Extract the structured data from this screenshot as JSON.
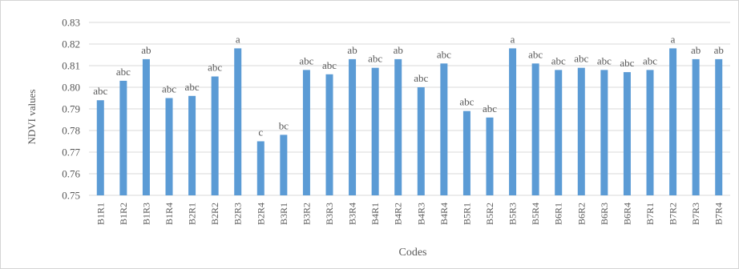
{
  "chart_data": {
    "type": "bar",
    "xlabel": "Codes",
    "ylabel": "NDVI values",
    "ylim": [
      0.75,
      0.83
    ],
    "ytick_step": 0.01,
    "grid": true,
    "legend": "none",
    "bar_color": "#5b9bd5",
    "grid_color": "#d9d9d9",
    "categories": [
      "B1R1",
      "B1R2",
      "B1R3",
      "B1R4",
      "B2R1",
      "B2R2",
      "B2R3",
      "B2R4",
      "B3R1",
      "B3R2",
      "B3R3",
      "B3R4",
      "B4R1",
      "B4R2",
      "B4R3",
      "B4R4",
      "B5R1",
      "B5R2",
      "B5R3",
      "B5R4",
      "B6R1",
      "B6R2",
      "B6R3",
      "B6R4",
      "B7R1",
      "B7R2",
      "B7R3",
      "B7R4"
    ],
    "values": [
      0.794,
      0.803,
      0.813,
      0.795,
      0.796,
      0.805,
      0.818,
      0.775,
      0.778,
      0.808,
      0.806,
      0.813,
      0.809,
      0.813,
      0.8,
      0.811,
      0.789,
      0.786,
      0.818,
      0.811,
      0.808,
      0.809,
      0.808,
      0.807,
      0.808,
      0.818,
      0.813,
      0.813
    ],
    "annotations": [
      "abc",
      "abc",
      "ab",
      "abc",
      "abc",
      "abc",
      "a",
      "c",
      "bc",
      "abc",
      "abc",
      "ab",
      "abc",
      "ab",
      "abc",
      "abc",
      "abc",
      "abc",
      "a",
      "abc",
      "abc",
      "abc",
      "abc",
      "abc",
      "abc",
      "a",
      "ab",
      "ab"
    ]
  }
}
